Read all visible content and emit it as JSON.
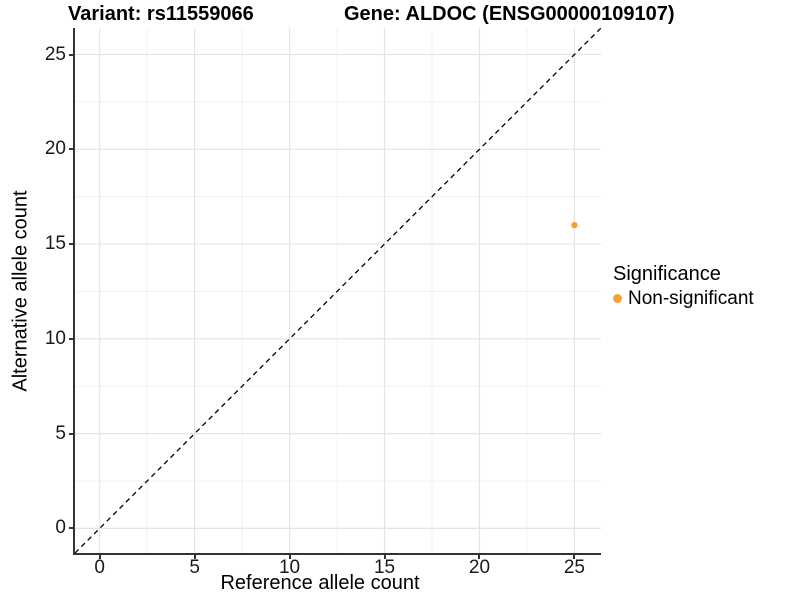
{
  "titles": {
    "left": "Variant: rs11559066",
    "right": "Gene: ALDOC (ENSG00000109107)"
  },
  "legend": {
    "title": "Significance",
    "items": [
      {
        "label": "Non-significant",
        "color": "#F9A134"
      }
    ]
  },
  "colors": {
    "point_orange": "#F9A134",
    "grid_major": "#E4E4E4",
    "grid_minor": "#F1F1F1",
    "axis_line": "#333333",
    "reference_line": "#000000",
    "text": "#000000"
  },
  "chart_data": {
    "type": "scatter",
    "title_left": "Variant: rs11559066",
    "title_right": "Gene: ALDOC (ENSG00000109107)",
    "xlabel": "Reference allele count",
    "ylabel": "Alternative allele count",
    "xlim": [
      -1.3,
      26.4
    ],
    "ylim": [
      -1.3,
      26.4
    ],
    "xticks": [
      0,
      5,
      10,
      15,
      20,
      25
    ],
    "yticks": [
      0,
      5,
      10,
      15,
      20,
      25
    ],
    "minor_xticks": [
      2.5,
      7.5,
      12.5,
      17.5,
      22.5
    ],
    "minor_yticks": [
      2.5,
      7.5,
      12.5,
      17.5,
      22.5
    ],
    "grid": "major+minor",
    "legend_position": "right",
    "series": [
      {
        "name": "Non-significant",
        "color": "#F9A134",
        "points": [
          {
            "x": 25,
            "y": 16
          }
        ]
      }
    ],
    "reference_line": {
      "type": "identity",
      "slope": 1,
      "intercept": 0,
      "style": "dashed",
      "color": "#000000"
    }
  }
}
